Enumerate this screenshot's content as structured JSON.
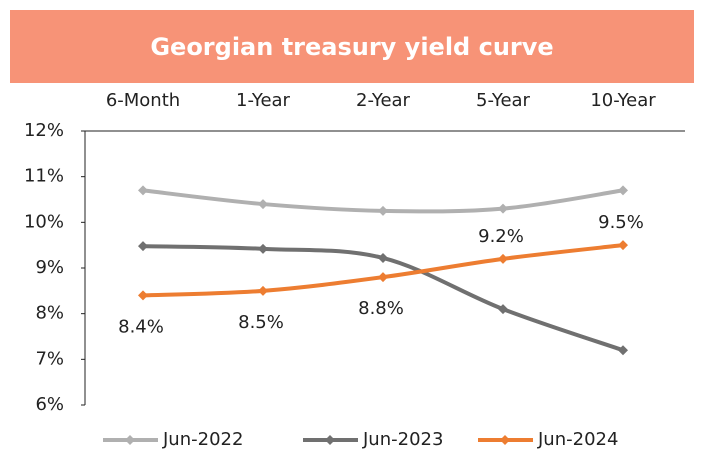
{
  "chart_data": {
    "type": "line",
    "title": "Georgian treasury yield curve",
    "categories": [
      "6-Month",
      "1-Year",
      "2-Year",
      "5-Year",
      "10-Year"
    ],
    "ylim": [
      6,
      12
    ],
    "yticks": [
      {
        "value": 6,
        "label": "6%"
      },
      {
        "value": 7,
        "label": "7%"
      },
      {
        "value": 8,
        "label": "8%"
      },
      {
        "value": 9,
        "label": "9%"
      },
      {
        "value": 10,
        "label": "10%"
      },
      {
        "value": 11,
        "label": "11%"
      },
      {
        "value": 12,
        "label": "12%"
      }
    ],
    "legend": "bottom",
    "series": [
      {
        "name": "Jun-2022",
        "color": "#b0b0b0",
        "values": [
          10.7,
          10.4,
          10.25,
          10.3,
          10.7
        ]
      },
      {
        "name": "Jun-2023",
        "color": "#707070",
        "values": [
          9.48,
          9.42,
          9.22,
          8.1,
          7.2
        ]
      },
      {
        "name": "Jun-2024",
        "color": "#ed7d31",
        "values": [
          8.4,
          8.5,
          8.8,
          9.2,
          9.5
        ],
        "value_labels": [
          "8.4%",
          "8.5%",
          "8.8%",
          "9.2%",
          "9.5%"
        ]
      }
    ]
  }
}
